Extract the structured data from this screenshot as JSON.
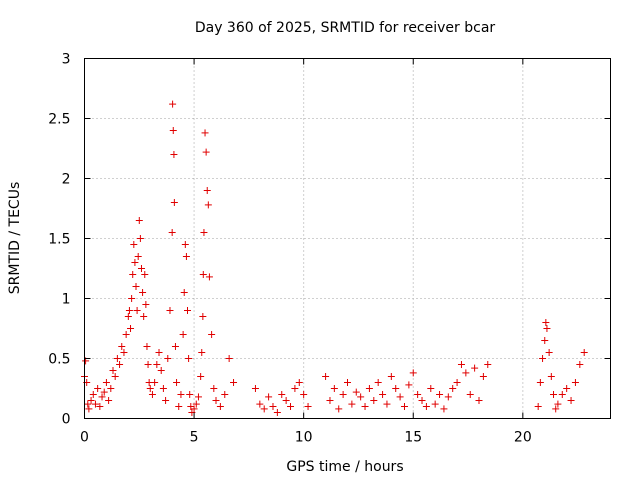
{
  "chart_data": {
    "type": "scatter",
    "title": "Day 360 of 2025, SRMTID for receiver bcar",
    "xlabel": "GPS time / hours",
    "ylabel": "SRMTID / TECUs",
    "xlim": [
      0,
      24
    ],
    "ylim": [
      0,
      3
    ],
    "xticks": [
      0,
      5,
      10,
      15,
      20
    ],
    "yticks": [
      0,
      0.5,
      1,
      1.5,
      2,
      2.5,
      3
    ],
    "xtick_labels": [
      "0",
      "5",
      "10",
      "15",
      "20"
    ],
    "ytick_labels": [
      "0",
      "0.5",
      "1",
      "1.5",
      "2",
      "2.5",
      "3"
    ],
    "grid": true,
    "marker": "+",
    "color": "#e00000",
    "series": [
      {
        "name": "bcar",
        "x": [
          0.0,
          0.05,
          0.1,
          0.15,
          0.2,
          0.3,
          0.4,
          0.5,
          0.6,
          0.7,
          0.8,
          0.9,
          1.0,
          1.1,
          1.2,
          1.3,
          1.4,
          1.5,
          1.6,
          1.7,
          1.8,
          1.9,
          2.0,
          2.05,
          2.1,
          2.15,
          2.2,
          2.25,
          2.3,
          2.35,
          2.4,
          2.45,
          2.5,
          2.55,
          2.6,
          2.65,
          2.7,
          2.75,
          2.8,
          2.85,
          2.9,
          2.95,
          3.0,
          3.1,
          3.2,
          3.3,
          3.4,
          3.5,
          3.6,
          3.7,
          3.8,
          3.9,
          4.0,
          4.02,
          4.05,
          4.08,
          4.1,
          4.15,
          4.2,
          4.3,
          4.4,
          4.5,
          4.55,
          4.6,
          4.65,
          4.7,
          4.75,
          4.8,
          4.85,
          4.9,
          5.0,
          5.1,
          5.2,
          5.3,
          5.35,
          5.4,
          5.42,
          5.45,
          5.5,
          5.55,
          5.6,
          5.65,
          5.7,
          5.8,
          5.9,
          6.0,
          6.2,
          6.4,
          6.6,
          6.8,
          7.8,
          8.0,
          8.2,
          8.4,
          8.6,
          8.8,
          9.0,
          9.2,
          9.4,
          9.6,
          9.8,
          10.0,
          10.2,
          11.0,
          11.2,
          11.4,
          11.6,
          11.8,
          12.0,
          12.2,
          12.4,
          12.6,
          12.8,
          13.0,
          13.2,
          13.4,
          13.6,
          13.8,
          14.0,
          14.2,
          14.4,
          14.6,
          14.8,
          15.0,
          15.2,
          15.4,
          15.6,
          15.8,
          16.0,
          16.2,
          16.4,
          16.6,
          16.8,
          17.0,
          17.2,
          17.4,
          17.6,
          17.8,
          18.0,
          18.2,
          18.4,
          20.7,
          20.8,
          20.9,
          21.0,
          21.05,
          21.1,
          21.2,
          21.3,
          21.4,
          21.5,
          21.6,
          21.8,
          22.0,
          22.2,
          22.4,
          22.6,
          22.8
        ],
        "y": [
          0.35,
          0.48,
          0.3,
          0.12,
          0.08,
          0.15,
          0.2,
          0.12,
          0.25,
          0.1,
          0.18,
          0.22,
          0.3,
          0.15,
          0.25,
          0.4,
          0.35,
          0.5,
          0.45,
          0.6,
          0.55,
          0.7,
          0.85,
          0.9,
          0.75,
          1.0,
          1.2,
          1.45,
          1.3,
          1.1,
          0.9,
          1.35,
          1.65,
          1.5,
          1.25,
          1.05,
          0.85,
          1.2,
          0.95,
          0.6,
          0.45,
          0.3,
          0.25,
          0.2,
          0.3,
          0.45,
          0.55,
          0.4,
          0.25,
          0.15,
          0.5,
          0.9,
          1.55,
          2.62,
          2.4,
          2.2,
          1.8,
          0.6,
          0.3,
          0.1,
          0.2,
          0.7,
          1.05,
          1.45,
          1.35,
          0.9,
          0.5,
          0.2,
          0.1,
          0.05,
          0.08,
          0.12,
          0.18,
          0.35,
          0.55,
          0.85,
          1.2,
          1.55,
          2.38,
          2.22,
          1.9,
          1.78,
          1.18,
          0.7,
          0.25,
          0.15,
          0.1,
          0.2,
          0.5,
          0.3,
          0.25,
          0.12,
          0.08,
          0.18,
          0.1,
          0.05,
          0.2,
          0.15,
          0.1,
          0.25,
          0.3,
          0.2,
          0.1,
          0.35,
          0.15,
          0.25,
          0.08,
          0.2,
          0.3,
          0.12,
          0.22,
          0.18,
          0.1,
          0.25,
          0.15,
          0.3,
          0.2,
          0.12,
          0.35,
          0.25,
          0.18,
          0.1,
          0.28,
          0.38,
          0.2,
          0.15,
          0.1,
          0.25,
          0.12,
          0.2,
          0.08,
          0.18,
          0.25,
          0.3,
          0.45,
          0.38,
          0.2,
          0.42,
          0.15,
          0.35,
          0.45,
          0.1,
          0.3,
          0.5,
          0.65,
          0.8,
          0.75,
          0.55,
          0.35,
          0.2,
          0.08,
          0.12,
          0.2,
          0.25,
          0.15,
          0.3,
          0.45,
          0.55
        ]
      }
    ]
  }
}
